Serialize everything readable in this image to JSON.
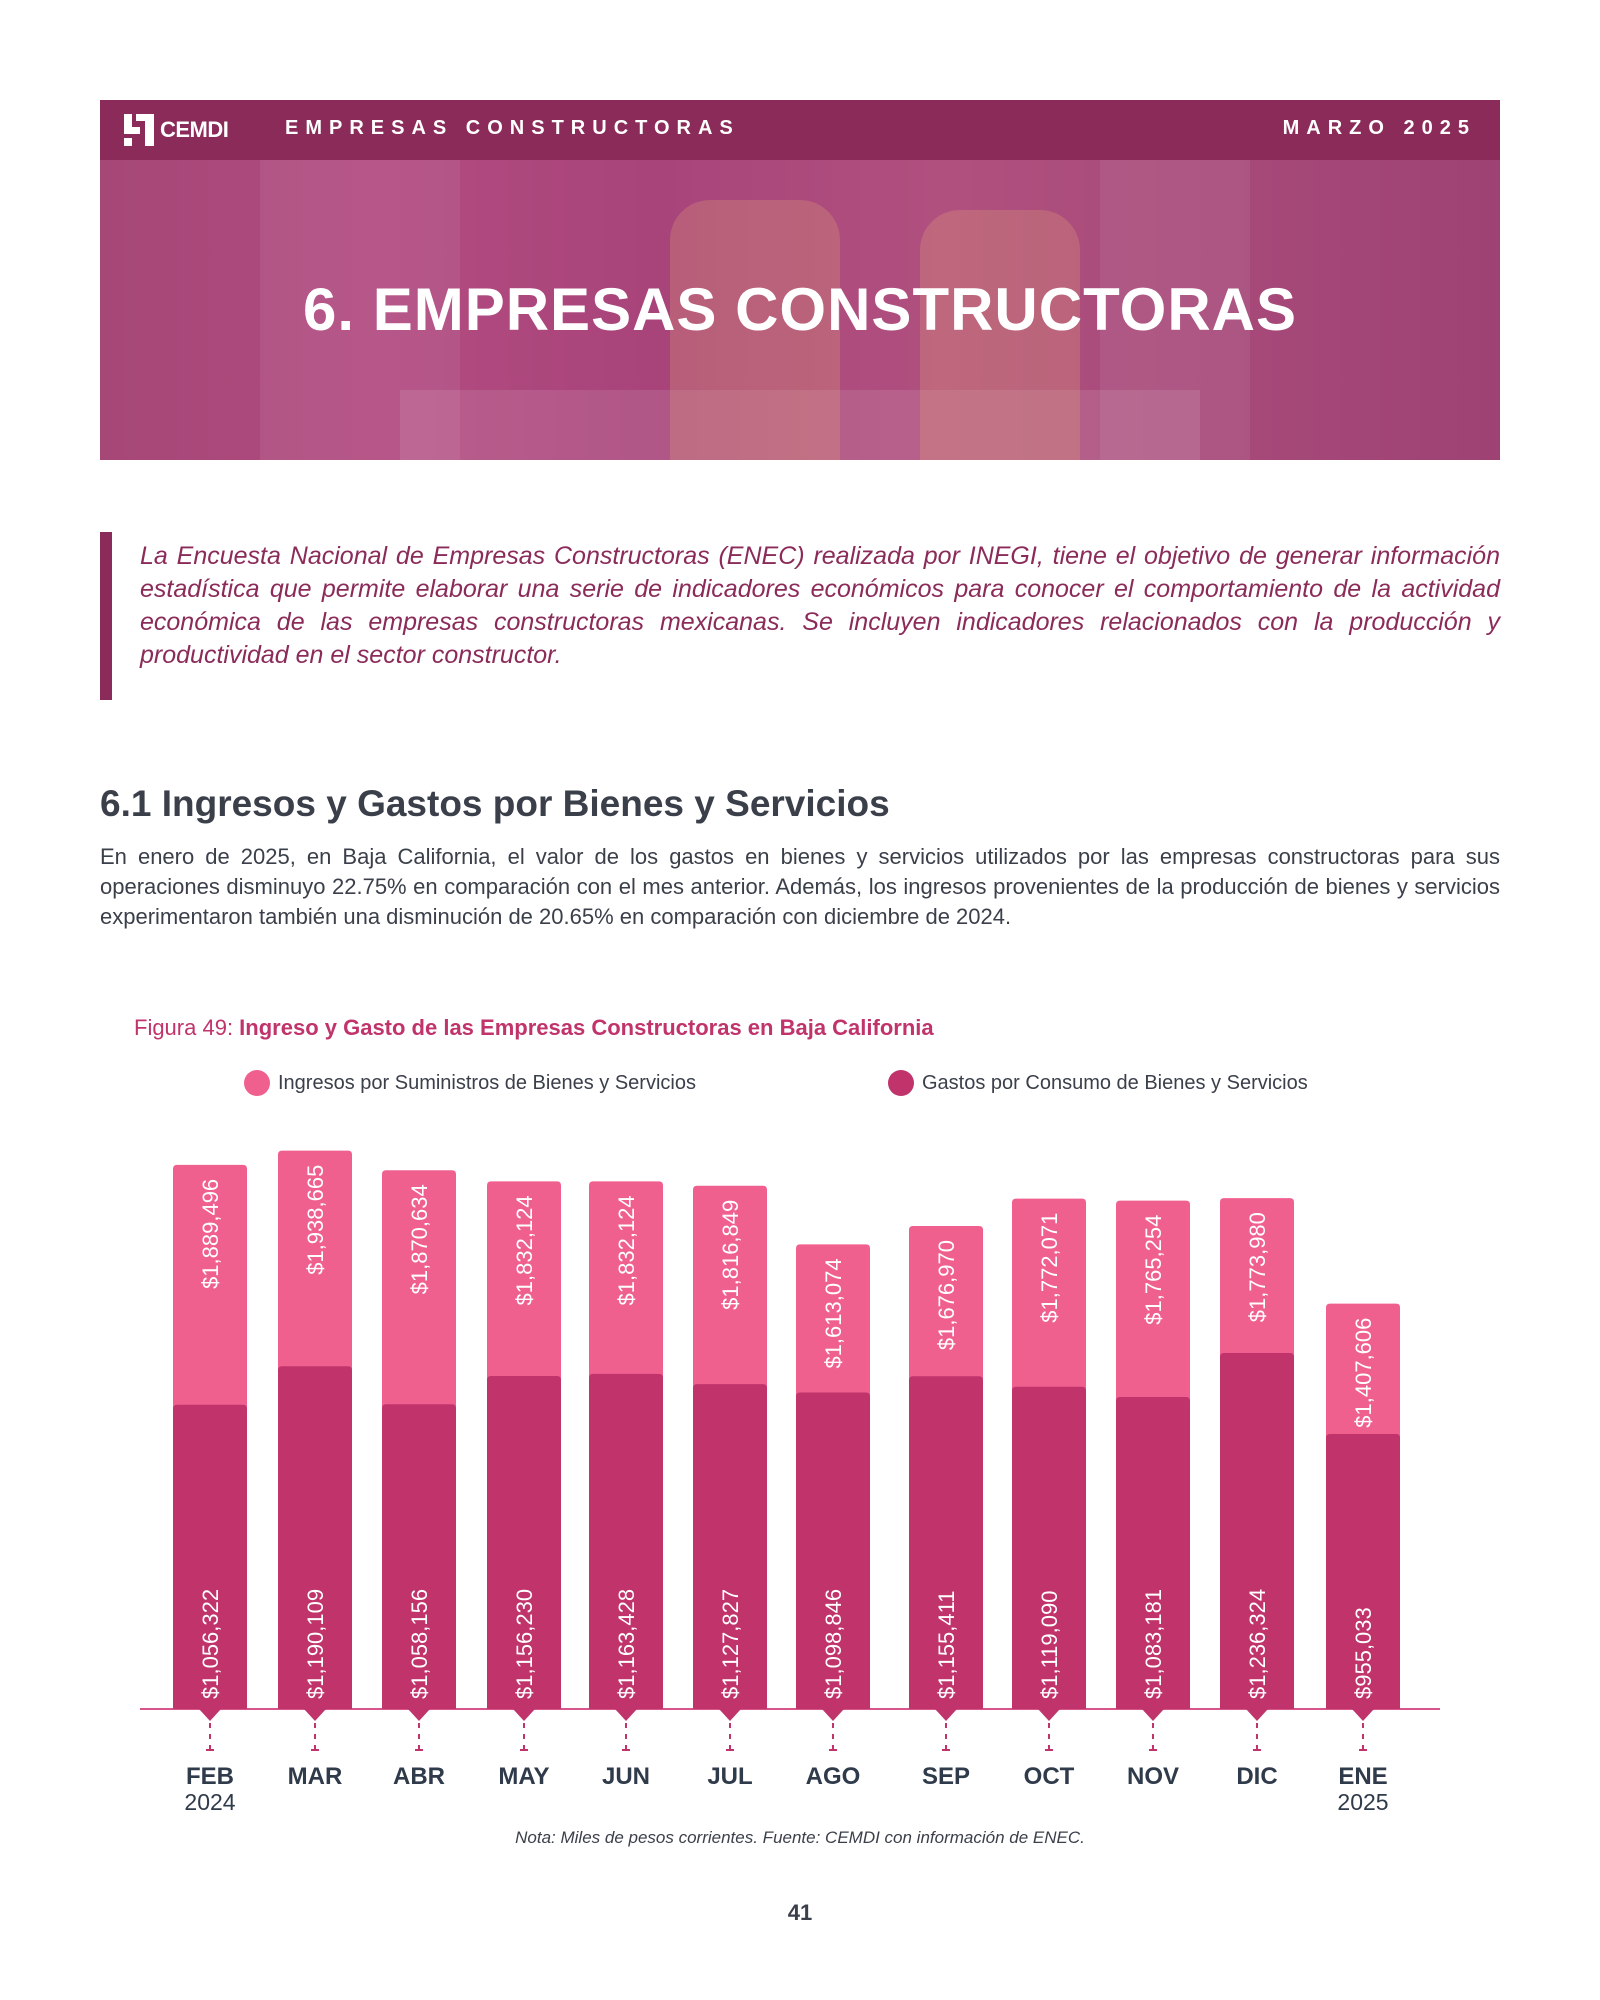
{
  "header": {
    "logo_text": "CEMDI",
    "section_label": "EMPRESAS CONSTRUCTORAS",
    "date": "MARZO 2025",
    "banner_title": "6. EMPRESAS CONSTRUCTORAS"
  },
  "intro": {
    "text": "La Encuesta Nacional de Empresas Constructoras (ENEC) realizada por INEGI, tiene el objetivo de generar información estadística que permite elaborar una serie de indicadores económicos para conocer el comportamiento de la actividad económica de las empresas constructoras mexicanas. Se incluyen indicadores relacionados con la producción y productividad en el sector constructor."
  },
  "section": {
    "title": "6.1 Ingresos y Gastos por Bienes y Servicios",
    "body": "En enero de 2025, en Baja California, el valor de los gastos en bienes y servicios utilizados por las empresas constructoras para sus operaciones disminuyo 22.75% en comparación con el mes anterior. Además, los ingresos provenientes de la producción de bienes y servicios experimentaron también una disminución de 20.65% en comparación con diciembre de 2024."
  },
  "figure": {
    "label": "Figura 49: ",
    "title": "Ingreso y Gasto de las Empresas Constructoras en Baja California",
    "note": "Nota: Miles de pesos corrientes. Fuente: CEMDI con información de ENEC."
  },
  "page_number": "41",
  "colors": {
    "ingresos": "#f0608f",
    "gastos": "#c0336b",
    "brand": "#8a2b59",
    "axis_text": "#2f3a4a"
  },
  "chart_data": {
    "type": "bar",
    "layout": "overlapped",
    "title": "Ingreso y Gasto de las Empresas Constructoras en Baja California",
    "xlabel": "",
    "ylabel": "Miles de pesos corrientes",
    "ylim": [
      0,
      2000000
    ],
    "grid": false,
    "legend_position": "top",
    "categories": [
      "FEB",
      "MAR",
      "ABR",
      "MAY",
      "JUN",
      "JUL",
      "AGO",
      "SEP",
      "OCT",
      "NOV",
      "DIC",
      "ENE"
    ],
    "category_sublabels": [
      "2024",
      "",
      "",
      "",
      "",
      "",
      "",
      "",
      "",
      "",
      "",
      "2025"
    ],
    "series": [
      {
        "name": "Ingresos por Suministros de Bienes y Servicios",
        "values": [
          1889496,
          1938665,
          1870634,
          1832124,
          1832124,
          1816849,
          1613074,
          1676970,
          1772071,
          1765254,
          1773980,
          1407606
        ],
        "labels": [
          "$1,889,496",
          "$1,938,665",
          "$1,870,634",
          "$1,832,124",
          "$1,832,124",
          "$1,816,849",
          "$1,613,074",
          "$1,676,970",
          "$1,772,071",
          "$1,765,254",
          "$1,773,980",
          "$1,407,606"
        ]
      },
      {
        "name": "Gastos por Consumo de Bienes y Servicios",
        "values": [
          1056322,
          1190109,
          1058156,
          1156230,
          1163428,
          1127827,
          1098846,
          1155411,
          1119090,
          1083181,
          1236324,
          955033
        ],
        "labels": [
          "$1,056,322",
          "$1,190,109",
          "$1,058,156",
          "$1,156,230",
          "$1,163,428",
          "$1,127,827",
          "$1,098,846",
          "$1,155,411",
          "$1,119,090",
          "$1,083,181",
          "$1,236,324",
          "$955,033"
        ]
      }
    ]
  }
}
